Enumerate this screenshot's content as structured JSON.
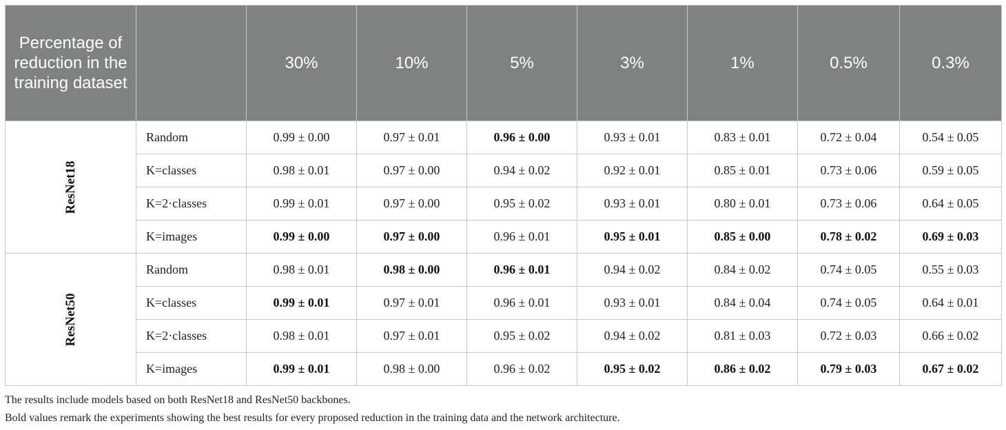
{
  "table": {
    "corner_header": "Percentage of reduction in the training dataset",
    "columns": [
      "30%",
      "10%",
      "5%",
      "3%",
      "1%",
      "0.5%",
      "0.3%"
    ],
    "groups": [
      {
        "name": "ResNet18",
        "rows": [
          {
            "method": "Random",
            "values": [
              "0.99 ± 0.00",
              "0.97 ± 0.01",
              "0.96 ± 0.00",
              "0.93 ± 0.01",
              "0.83 ± 0.01",
              "0.72 ± 0.04",
              "0.54 ± 0.05"
            ],
            "bold": [
              false,
              false,
              true,
              false,
              false,
              false,
              false
            ]
          },
          {
            "method": "K=classes",
            "values": [
              "0.98 ± 0.01",
              "0.97 ± 0.00",
              "0.94 ± 0.02",
              "0.92 ± 0.01",
              "0.85 ± 0.01",
              "0.73 ± 0.06",
              "0.59 ± 0.05"
            ],
            "bold": [
              false,
              false,
              false,
              false,
              false,
              false,
              false
            ]
          },
          {
            "method": "K=2·classes",
            "values": [
              "0.99 ± 0.01",
              "0.97 ± 0.00",
              "0.95 ± 0.02",
              "0.93 ± 0.01",
              "0.80 ± 0.01",
              "0.73 ± 0.06",
              "0.64 ± 0.05"
            ],
            "bold": [
              false,
              false,
              false,
              false,
              false,
              false,
              false
            ]
          },
          {
            "method": "K=images",
            "values": [
              "0.99 ± 0.00",
              "0.97 ± 0.00",
              "0.96 ± 0.01",
              "0.95 ± 0.01",
              "0.85 ± 0.00",
              "0.78 ± 0.02",
              "0.69 ± 0.03"
            ],
            "bold": [
              true,
              true,
              false,
              true,
              true,
              true,
              true
            ]
          }
        ]
      },
      {
        "name": "ResNet50",
        "rows": [
          {
            "method": "Random",
            "values": [
              "0.98 ± 0.01",
              "0.98 ± 0.00",
              "0.96 ± 0.01",
              "0.94 ± 0.02",
              "0.84 ± 0.02",
              "0.74 ± 0.05",
              "0.55 ± 0.03"
            ],
            "bold": [
              false,
              true,
              true,
              false,
              false,
              false,
              false
            ]
          },
          {
            "method": "K=classes",
            "values": [
              "0.99 ± 0.01",
              "0.97 ± 0.01",
              "0.96 ± 0.01",
              "0.93 ± 0.01",
              "0.84 ± 0.04",
              "0.74 ± 0.05",
              "0.64 ± 0.01"
            ],
            "bold": [
              true,
              false,
              false,
              false,
              false,
              false,
              false
            ]
          },
          {
            "method": "K=2·classes",
            "values": [
              "0.98 ± 0.01",
              "0.97 ± 0.01",
              "0.95 ± 0.02",
              "0.94 ± 0.02",
              "0.81 ± 0.03",
              "0.72 ± 0.03",
              "0.66 ± 0.02"
            ],
            "bold": [
              false,
              false,
              false,
              false,
              false,
              false,
              false
            ]
          },
          {
            "method": "K=images",
            "values": [
              "0.99 ± 0.01",
              "0.98 ± 0.00",
              "0.96 ± 0.02",
              "0.95 ± 0.02",
              "0.86 ± 0.02",
              "0.79 ± 0.03",
              "0.67 ± 0.02"
            ],
            "bold": [
              true,
              false,
              false,
              true,
              true,
              true,
              true
            ]
          }
        ]
      }
    ]
  },
  "notes": [
    "The results include models based on both ResNet18 and ResNet50 backbones.",
    "Bold values remark the experiments showing the best results for every proposed reduction in the training data and the network architecture."
  ],
  "colors": {
    "header_bg": "#7f8280",
    "header_text": "#ffffff",
    "border": "#c7c7c7"
  }
}
